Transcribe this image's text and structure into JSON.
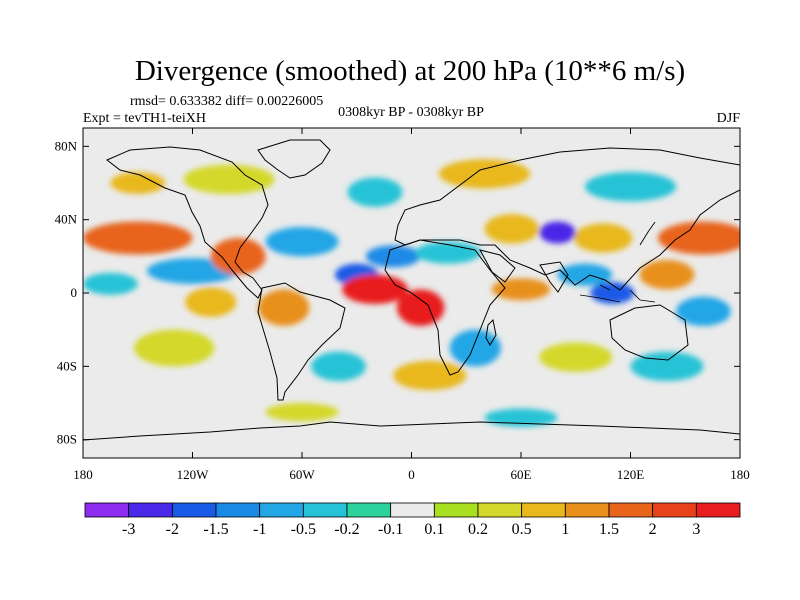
{
  "chart_data": {
    "type": "heatmap",
    "title": "Divergence (smoothed) at 200 hPa (10**6 m/s)",
    "stats_text": "rmsd= 0.633382 diff= 0.00226005",
    "experiment_text": "Expt = tevTH1-teiXH",
    "period_text": "0308kyr BP - 0308kyr BP",
    "season_text": "DJF",
    "x_ticks": [
      {
        "label": "180",
        "value": -180
      },
      {
        "label": "120W",
        "value": -120
      },
      {
        "label": "60W",
        "value": -60
      },
      {
        "label": "0",
        "value": 0
      },
      {
        "label": "60E",
        "value": 60
      },
      {
        "label": "120E",
        "value": 120
      },
      {
        "label": "180",
        "value": 180
      }
    ],
    "y_ticks": [
      {
        "label": "80N",
        "value": 80
      },
      {
        "label": "40N",
        "value": 40
      },
      {
        "label": "0",
        "value": 0
      },
      {
        "label": "40S",
        "value": -40
      },
      {
        "label": "80S",
        "value": -80
      }
    ],
    "xlim": [
      -180,
      180
    ],
    "ylim": [
      -90,
      90
    ],
    "contour_levels": [
      "-3",
      "-2",
      "-1.5",
      "-1",
      "-0.5",
      "-0.2",
      "-0.1",
      "0.1",
      "0.2",
      "0.5",
      "1",
      "1.5",
      "2",
      "3"
    ],
    "colorbar_colors": [
      "#8e2cf0",
      "#4a28e8",
      "#1b5ae6",
      "#1a8ae6",
      "#22a6e6",
      "#26c3d6",
      "#2cd19c",
      "#ebebeb",
      "#a8e021",
      "#d4d82a",
      "#e8b81c",
      "#e8901a",
      "#e8641a",
      "#e8421c",
      "#e81d1d"
    ],
    "features": [
      {
        "lon": -150,
        "lat": 30,
        "rx": 30,
        "ry": 9,
        "bin": 12
      },
      {
        "lon": -120,
        "lat": 12,
        "rx": 25,
        "ry": 7,
        "bin": 4
      },
      {
        "lon": -165,
        "lat": 5,
        "rx": 15,
        "ry": 6,
        "bin": 5
      },
      {
        "lon": -95,
        "lat": 20,
        "rx": 15,
        "ry": 10,
        "bin": 12
      },
      {
        "lon": -60,
        "lat": 28,
        "rx": 20,
        "ry": 8,
        "bin": 4
      },
      {
        "lon": -110,
        "lat": -5,
        "rx": 14,
        "ry": 8,
        "bin": 10
      },
      {
        "lon": -70,
        "lat": -8,
        "rx": 14,
        "ry": 10,
        "bin": 11
      },
      {
        "lon": -30,
        "lat": 10,
        "rx": 12,
        "ry": 6,
        "bin": 2
      },
      {
        "lon": -10,
        "lat": 20,
        "rx": 15,
        "ry": 6,
        "bin": 3
      },
      {
        "lon": -20,
        "lat": 2,
        "rx": 18,
        "ry": 8,
        "bin": 14
      },
      {
        "lon": 5,
        "lat": -8,
        "rx": 13,
        "ry": 10,
        "bin": 14
      },
      {
        "lon": 20,
        "lat": 22,
        "rx": 18,
        "ry": 6,
        "bin": 5
      },
      {
        "lon": 35,
        "lat": -30,
        "rx": 14,
        "ry": 10,
        "bin": 4
      },
      {
        "lon": 55,
        "lat": 35,
        "rx": 15,
        "ry": 8,
        "bin": 10
      },
      {
        "lon": 80,
        "lat": 33,
        "rx": 10,
        "ry": 6,
        "bin": 1
      },
      {
        "lon": 105,
        "lat": 30,
        "rx": 16,
        "ry": 8,
        "bin": 10
      },
      {
        "lon": 160,
        "lat": 30,
        "rx": 25,
        "ry": 9,
        "bin": 12
      },
      {
        "lon": 60,
        "lat": 2,
        "rx": 16,
        "ry": 6,
        "bin": 11
      },
      {
        "lon": 95,
        "lat": 10,
        "rx": 15,
        "ry": 6,
        "bin": 4
      },
      {
        "lon": 110,
        "lat": 0,
        "rx": 12,
        "ry": 6,
        "bin": 2
      },
      {
        "lon": 140,
        "lat": 10,
        "rx": 15,
        "ry": 8,
        "bin": 11
      },
      {
        "lon": 160,
        "lat": -10,
        "rx": 15,
        "ry": 8,
        "bin": 4
      },
      {
        "lon": -130,
        "lat": -30,
        "rx": 22,
        "ry": 10,
        "bin": 9
      },
      {
        "lon": -40,
        "lat": -40,
        "rx": 15,
        "ry": 8,
        "bin": 5
      },
      {
        "lon": 10,
        "lat": -45,
        "rx": 20,
        "ry": 8,
        "bin": 10
      },
      {
        "lon": 90,
        "lat": -35,
        "rx": 20,
        "ry": 8,
        "bin": 9
      },
      {
        "lon": 140,
        "lat": -40,
        "rx": 20,
        "ry": 8,
        "bin": 5
      },
      {
        "lon": -100,
        "lat": 62,
        "rx": 25,
        "ry": 8,
        "bin": 9
      },
      {
        "lon": -20,
        "lat": 55,
        "rx": 15,
        "ry": 8,
        "bin": 5
      },
      {
        "lon": 40,
        "lat": 65,
        "rx": 25,
        "ry": 8,
        "bin": 10
      },
      {
        "lon": 120,
        "lat": 58,
        "rx": 25,
        "ry": 8,
        "bin": 5
      },
      {
        "lon": -150,
        "lat": 60,
        "rx": 15,
        "ry": 6,
        "bin": 10
      },
      {
        "lon": -60,
        "lat": -65,
        "rx": 20,
        "ry": 5,
        "bin": 9
      },
      {
        "lon": 60,
        "lat": -68,
        "rx": 20,
        "ry": 5,
        "bin": 5
      }
    ]
  }
}
